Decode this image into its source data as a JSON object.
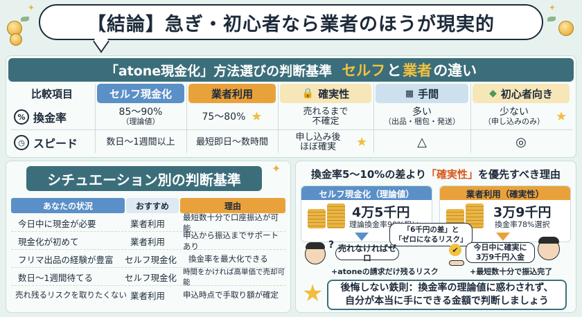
{
  "title": "【結論】急ぎ・初心者なら業者のほうが現実的",
  "compare": {
    "header_a": "「atone現金化」方法選びの判断基準",
    "header_b": "セルフ",
    "header_c": "と",
    "header_d": "業者",
    "header_e": "の違い",
    "columns": [
      "比較項目",
      "セルフ現金化",
      "業者利用",
      "確実性",
      "手間",
      "初心者向き"
    ],
    "rows": [
      {
        "label": "換金率",
        "self": "85〜90%",
        "self_sub": "（理論値）",
        "vendor": "75〜80%",
        "certainty": "売れるまで\n不確定",
        "effort": "多い",
        "effort_sub": "（出品・梱包・発送）",
        "beginner": "少ない",
        "beginner_sub": "（申し込みのみ）"
      },
      {
        "label": "スピード",
        "self": "数日〜1週間以上",
        "vendor": "最短即日〜数時間",
        "certainty": "申し込み後\nほぼ確実",
        "effort": "△",
        "beginner": "◎"
      }
    ]
  },
  "situation": {
    "title": "シチュエーション別の判断基準",
    "headers": [
      "あなたの状況",
      "おすすめ",
      "理由"
    ],
    "rows": [
      [
        "今日中に現金が必要",
        "業者利用",
        "最短数十分で口座振込が可能"
      ],
      [
        "現金化が初めて",
        "業者利用",
        "申込から振込までサポートあり"
      ],
      [
        "フリマ出品の経験が豊富",
        "セルフ現金化",
        "換金率を最大化できる"
      ],
      [
        "数日〜1週間待てる",
        "セルフ現金化",
        "時間をかければ高単価で売却可能"
      ],
      [
        "売れ残るリスクを取りたくない",
        "業者利用",
        "申込時点で手取り額が確定"
      ]
    ]
  },
  "reason": {
    "title_pre": "換金率5〜10%の差より",
    "title_hl": "「確実性」",
    "title_post": "を優先すべき理由",
    "self_head": "セルフ現金化（理論値）",
    "self_amount": "4万5千円",
    "self_note": "理論換金率90%狙い",
    "vendor_head": "業者利用（確実性）",
    "vendor_amount": "3万9千円",
    "vendor_note": "換金率78%選択",
    "middle_bubble_1": "「6千円の差」と",
    "middle_bubble_2": "「ゼロになるリスク」",
    "self_bubble": "売れなければゼロ",
    "self_caption": "+atoneの請求だけ残るリスク",
    "vendor_bubble_1": "今日中に確実に",
    "vendor_bubble_2": "3万9千円入金",
    "vendor_caption": "+最短数十分で振込完了",
    "rule_1": "後悔しない鉄則：換金率の理論値に惑わされず、",
    "rule_2": "自分が本当に手にできる金額で判断しましょう"
  },
  "colors": {
    "teal": "#3b6e7a",
    "blue_head": "#5b8fc7",
    "orange_head": "#e9a23b",
    "gold": "#f2c23e"
  }
}
